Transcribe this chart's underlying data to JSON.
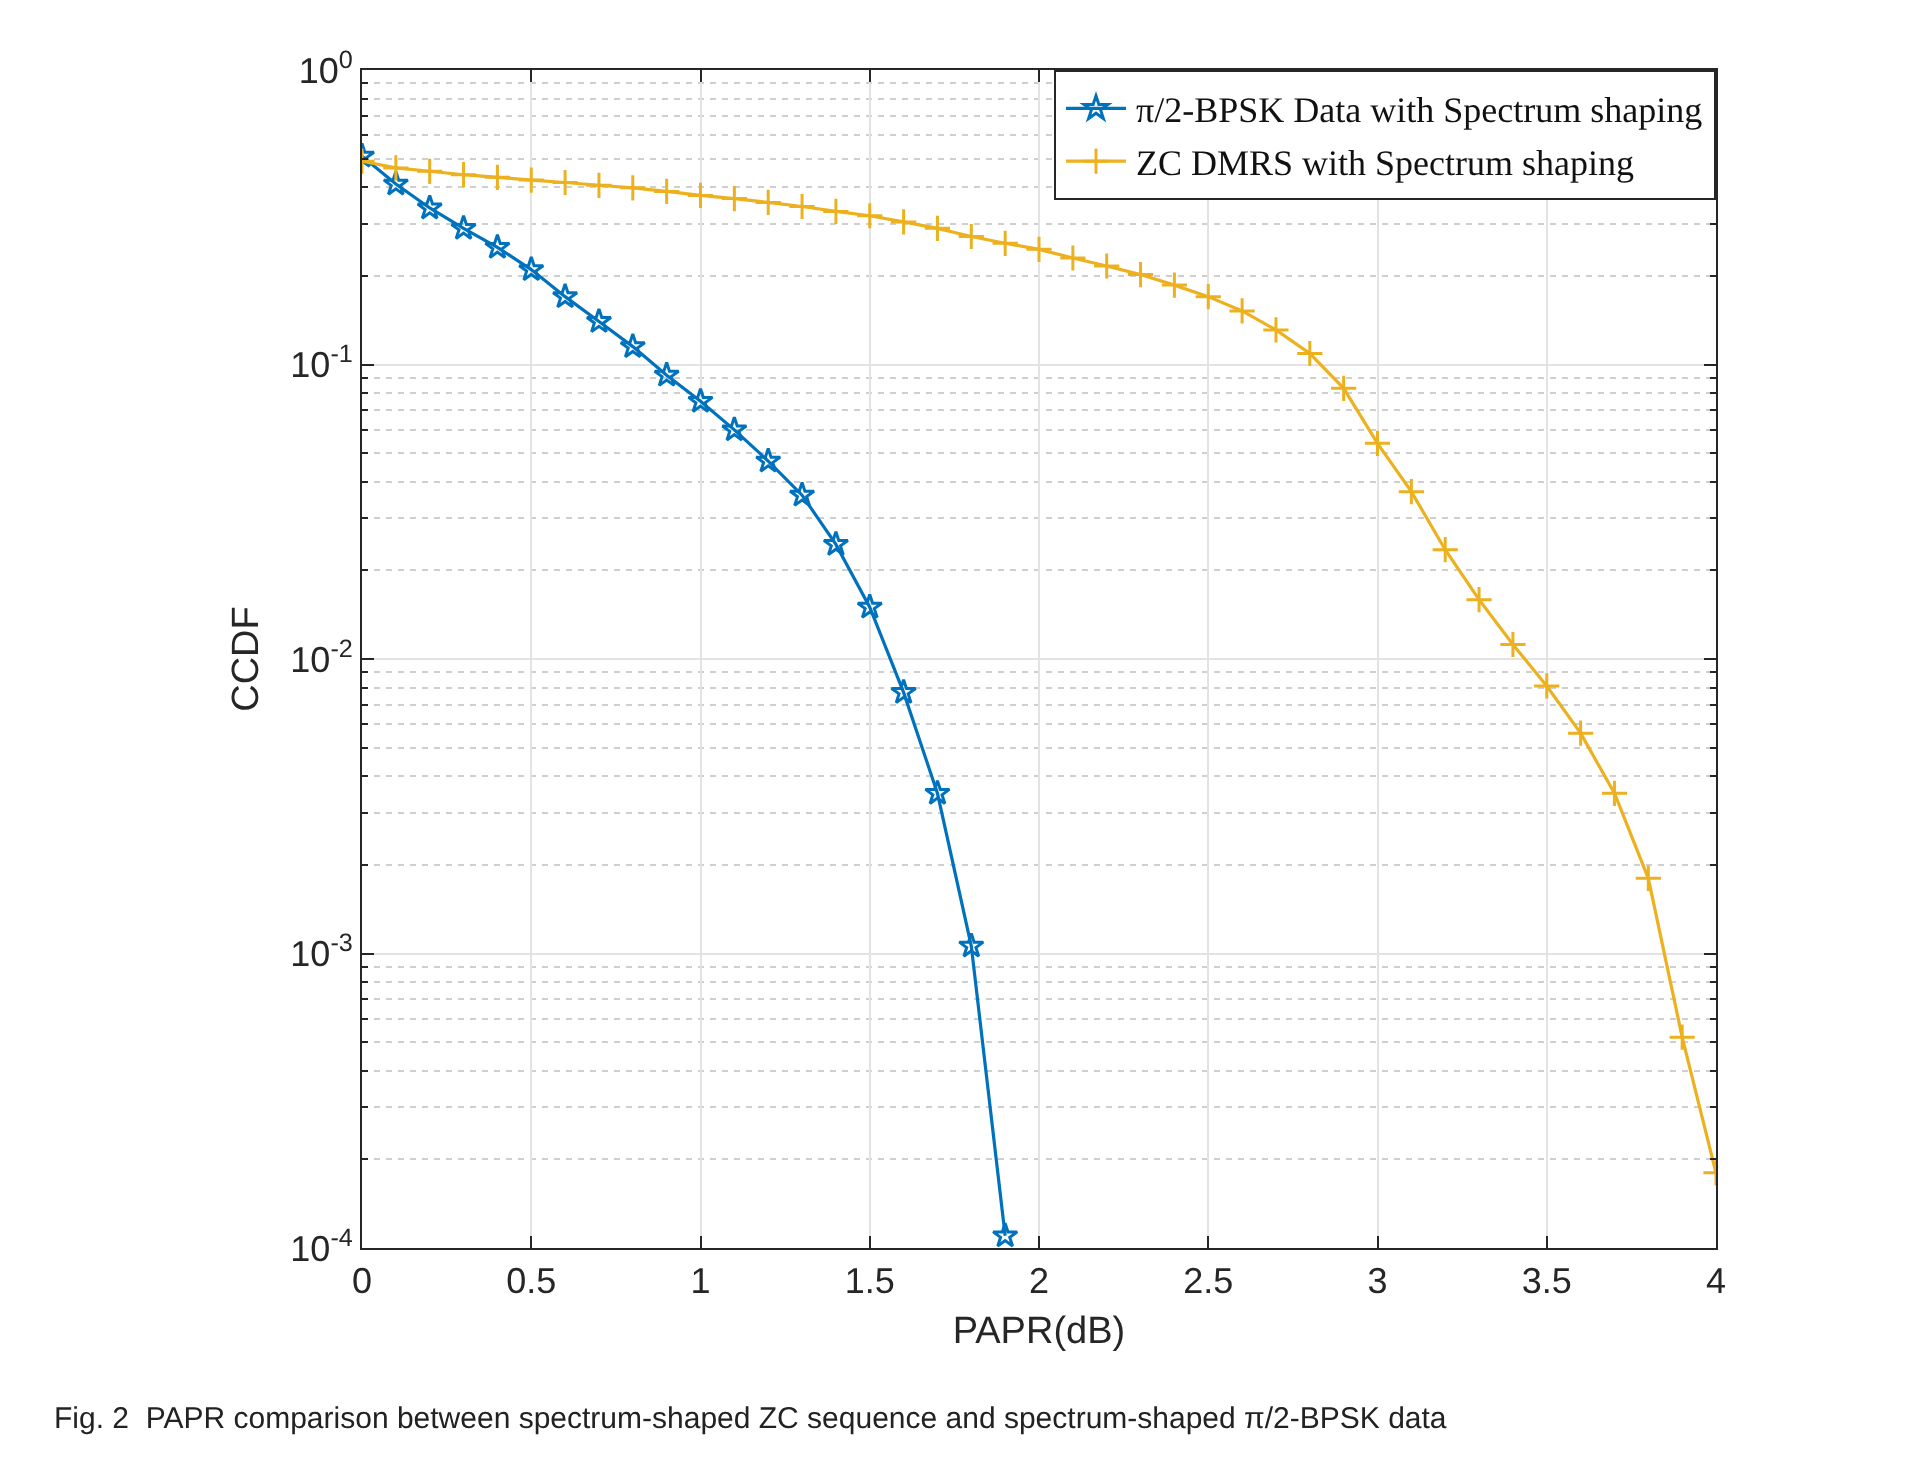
{
  "chart_data": {
    "type": "line",
    "xlabel": "PAPR(dB)",
    "ylabel": "CCDF",
    "log": "y",
    "grid": true,
    "legend": "top right",
    "x": [
      0,
      0.1,
      0.2,
      0.3,
      0.4,
      0.5,
      0.6,
      0.7,
      0.8,
      0.9,
      1.0,
      1.1,
      1.2,
      1.3,
      1.4,
      1.5,
      1.6,
      1.7,
      1.8,
      1.9,
      2.0,
      2.1,
      2.2,
      2.3,
      2.4,
      2.5,
      2.6,
      2.7,
      2.8,
      2.9,
      3.0,
      3.1,
      3.2,
      3.3,
      3.4,
      3.5,
      3.6,
      3.7,
      3.8,
      3.9,
      4.0
    ],
    "xlim": [
      0,
      4
    ],
    "xticks": [
      0,
      0.5,
      1,
      1.5,
      2,
      2.5,
      3,
      3.5,
      4
    ],
    "ylim": [
      0.0001,
      1
    ],
    "yticks": [
      {
        "value": 0.0001,
        "label": "10$^{-4}$"
      },
      {
        "value": 0.001,
        "label": "10$^{-3}$"
      },
      {
        "value": 0.01,
        "label": "10$^{-2}$"
      },
      {
        "value": 0.1,
        "label": "10$^{-1}$"
      },
      {
        "value": 1,
        "label": "10$^{0}$"
      }
    ],
    "series": [
      {
        "name": "π/2-BPSK Data with Spectrum shaping",
        "color": "#0072bd",
        "marker": "star",
        "x": [
          0,
          0.1,
          0.2,
          0.3,
          0.4,
          0.5,
          0.6,
          0.7,
          0.8,
          0.9,
          1.0,
          1.1,
          1.2,
          1.3,
          1.4,
          1.5,
          1.6,
          1.7,
          1.8,
          1.9
        ],
        "values": [
          0.51,
          0.41,
          0.34,
          0.29,
          0.25,
          0.21,
          0.17,
          0.14,
          0.115,
          0.092,
          0.075,
          0.06,
          0.047,
          0.036,
          0.0245,
          0.015,
          0.0077,
          0.0035,
          0.00106,
          0.00011
        ]
      },
      {
        "name": "ZC DMRS with Spectrum shaping",
        "color": "#edb120",
        "marker": "cross",
        "values": [
          0.49,
          0.465,
          0.453,
          0.441,
          0.432,
          0.423,
          0.415,
          0.406,
          0.398,
          0.387,
          0.375,
          0.366,
          0.355,
          0.344,
          0.331,
          0.32,
          0.305,
          0.29,
          0.272,
          0.258,
          0.246,
          0.23,
          0.216,
          0.202,
          0.186,
          0.17,
          0.152,
          0.131,
          0.109,
          0.083,
          0.054,
          0.037,
          0.0235,
          0.0159,
          0.0112,
          0.0081,
          0.0056,
          0.0035,
          0.0018,
          0.00052,
          0.00018
        ]
      }
    ],
    "annotations": [
      "Fig. 2  PAPR comparison between spectrum-shaped ZC sequence and spectrum-shaped π/2-BPSK data"
    ]
  }
}
